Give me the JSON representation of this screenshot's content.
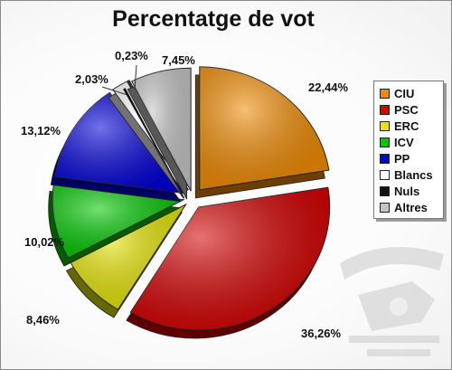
{
  "chart_data": {
    "type": "pie",
    "title": "Percentatge de vot",
    "categories": [
      "CIU",
      "PSC",
      "ERC",
      "ICV",
      "PP",
      "Blancs",
      "Nuls",
      "Altres"
    ],
    "values": [
      22.44,
      36.26,
      8.46,
      10.02,
      13.12,
      2.03,
      0.23,
      7.45
    ],
    "value_labels": [
      "22,44%",
      "36,26%",
      "8,46%",
      "10,02%",
      "13,12%",
      "2,03%",
      "0,23%",
      "7,45%"
    ],
    "colors": [
      "#f08a00",
      "#d40000",
      "#e5e500",
      "#00c800",
      "#0000d8",
      "#ffffff",
      "#111111",
      "#c4c4c4"
    ],
    "legend_placement": "right",
    "style": "3d-exploded"
  },
  "watermark": {
    "icon": "heraldic-coat-of-arms-watermark"
  }
}
